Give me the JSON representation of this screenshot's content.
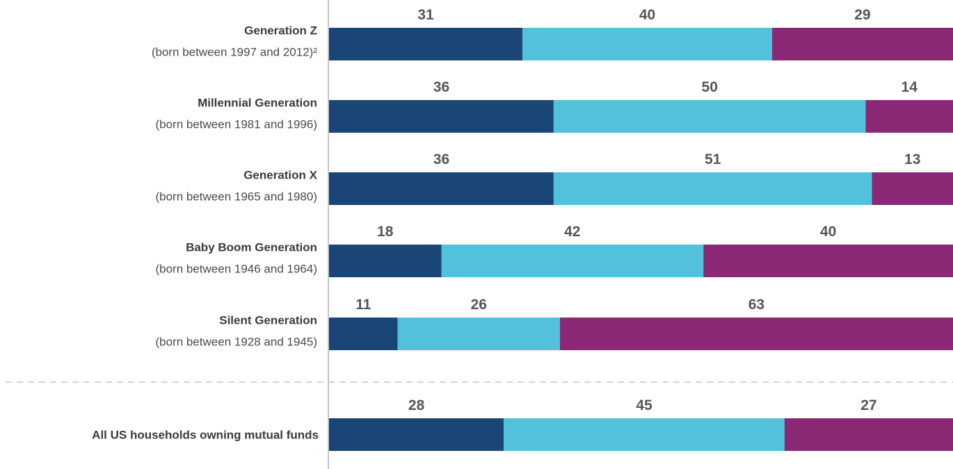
{
  "chart_data": {
    "type": "bar",
    "stacked": true,
    "orientation": "horizontal",
    "xlim": [
      0,
      100
    ],
    "grid": false,
    "colors": [
      "#1a4577",
      "#52c1dc",
      "#8a2876"
    ],
    "categories": [
      {
        "name": "Generation Z",
        "sub": "(born between 1997 and 2012)²"
      },
      {
        "name": "Millennial Generation",
        "sub": "(born between 1981 and 1996)"
      },
      {
        "name": "Generation X",
        "sub": "(born between 1965 and 1980)"
      },
      {
        "name": "Baby Boom Generation",
        "sub": "(born between 1946 and 1964)"
      },
      {
        "name": "Silent Generation",
        "sub": "(born between 1928 and 1945)"
      },
      {
        "name": "All US households owning mutual funds",
        "sub": ""
      }
    ],
    "series": [
      {
        "values": [
          31,
          36,
          36,
          18,
          11,
          28
        ]
      },
      {
        "values": [
          40,
          50,
          51,
          42,
          26,
          45
        ]
      },
      {
        "values": [
          29,
          14,
          13,
          40,
          63,
          27
        ]
      }
    ]
  }
}
